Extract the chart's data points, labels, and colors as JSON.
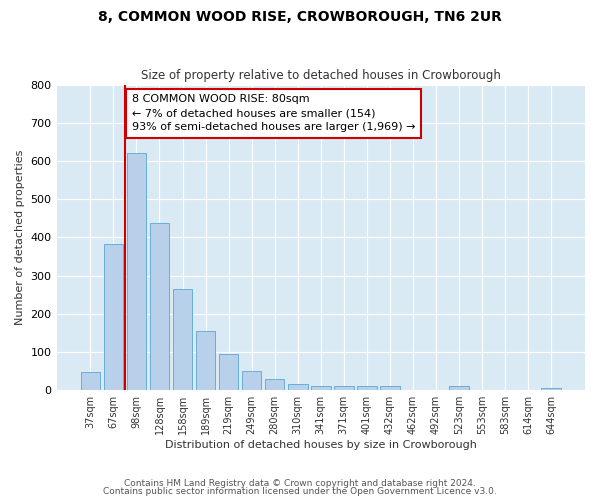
{
  "title": "8, COMMON WOOD RISE, CROWBOROUGH, TN6 2UR",
  "subtitle": "Size of property relative to detached houses in Crowborough",
  "xlabel": "Distribution of detached houses by size in Crowborough",
  "ylabel": "Number of detached properties",
  "bar_labels": [
    "37sqm",
    "67sqm",
    "98sqm",
    "128sqm",
    "158sqm",
    "189sqm",
    "219sqm",
    "249sqm",
    "280sqm",
    "310sqm",
    "341sqm",
    "371sqm",
    "401sqm",
    "432sqm",
    "462sqm",
    "492sqm",
    "523sqm",
    "553sqm",
    "583sqm",
    "614sqm",
    "644sqm"
  ],
  "bar_values": [
    48,
    383,
    622,
    438,
    265,
    155,
    95,
    50,
    30,
    15,
    10,
    10,
    10,
    10,
    0,
    0,
    10,
    0,
    0,
    0,
    7
  ],
  "bar_color": "#b8d0ea",
  "bar_edge_color": "#6aaed6",
  "bg_color": "#daeaf5",
  "grid_color": "#ffffff",
  "vline_color": "#cc0000",
  "ylim": [
    0,
    800
  ],
  "yticks": [
    0,
    100,
    200,
    300,
    400,
    500,
    600,
    700,
    800
  ],
  "annotation_text": "8 COMMON WOOD RISE: 80sqm\n← 7% of detached houses are smaller (154)\n93% of semi-detached houses are larger (1,969) →",
  "annotation_box_color": "#ffffff",
  "annotation_box_edge": "#cc0000",
  "footer_line1": "Contains HM Land Registry data © Crown copyright and database right 2024.",
  "footer_line2": "Contains public sector information licensed under the Open Government Licence v3.0."
}
